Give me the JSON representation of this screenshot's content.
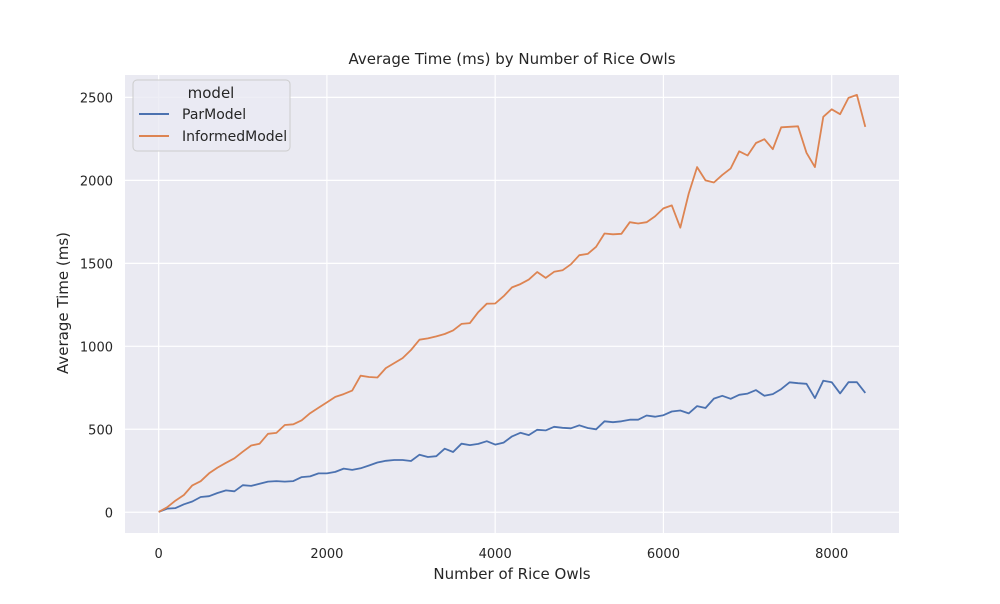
{
  "chart_data": {
    "type": "line",
    "title": "Average Time (ms) by Number of Rice Owls",
    "xlabel": "Number of Rice Owls",
    "ylabel": "Average Time (ms)",
    "xlim": [
      -400,
      8800
    ],
    "ylim": [
      -125,
      2635
    ],
    "xticks": [
      0,
      2000,
      4000,
      6000,
      8000
    ],
    "yticks": [
      0,
      500,
      1000,
      1500,
      2000,
      2500
    ],
    "grid": true,
    "legend": {
      "title": "model",
      "placement": "top-left"
    },
    "colors": {
      "plot_bg": "#eaeaf2",
      "grid": "#ffffff",
      "ParModel": "#4c72b0",
      "InformedModel": "#dd8452"
    },
    "x": [
      0,
      100,
      200,
      300,
      400,
      500,
      600,
      700,
      800,
      900,
      1000,
      1100,
      1200,
      1300,
      1400,
      1500,
      1600,
      1700,
      1800,
      1900,
      2000,
      2100,
      2200,
      2300,
      2400,
      2500,
      2600,
      2700,
      2800,
      2900,
      3000,
      3100,
      3200,
      3300,
      3400,
      3500,
      3600,
      3700,
      3800,
      3900,
      4000,
      4100,
      4200,
      4300,
      4400,
      4500,
      4600,
      4700,
      4800,
      4900,
      5000,
      5100,
      5200,
      5300,
      5400,
      5500,
      5600,
      5700,
      5800,
      5900,
      6000,
      6100,
      6200,
      6300,
      6400,
      6500,
      6600,
      6700,
      6800,
      6900,
      7000,
      7100,
      7200,
      7300,
      7400,
      7500,
      7600,
      7700,
      7800,
      7900,
      8000,
      8100,
      8200,
      8300,
      8400
    ],
    "series": [
      {
        "name": "ParModel",
        "values": [
          2,
          22,
          25,
          48,
          65,
          92,
          97,
          116,
          132,
          126,
          163,
          159,
          172,
          185,
          188,
          185,
          188,
          212,
          216,
          234,
          234,
          243,
          263,
          255,
          265,
          282,
          300,
          310,
          315,
          315,
          309,
          347,
          333,
          338,
          383,
          363,
          413,
          405,
          412,
          428,
          408,
          420,
          457,
          479,
          465,
          497,
          493,
          515,
          509,
          506,
          524,
          508,
          500,
          548,
          543,
          548,
          558,
          558,
          583,
          576,
          585,
          607,
          613,
          596,
          640,
          628,
          685,
          702,
          684,
          708,
          715,
          736,
          702,
          712,
          742,
          783,
          778,
          774,
          688,
          793,
          784,
          716,
          784,
          784,
          719
        ]
      },
      {
        "name": "InformedModel",
        "values": [
          2,
          30,
          70,
          104,
          162,
          187,
          235,
          269,
          298,
          325,
          365,
          402,
          413,
          473,
          478,
          526,
          530,
          554,
          597,
          630,
          662,
          695,
          712,
          733,
          823,
          815,
          812,
          869,
          899,
          929,
          978,
          1040,
          1048,
          1060,
          1074,
          1096,
          1135,
          1140,
          1206,
          1257,
          1258,
          1302,
          1355,
          1375,
          1402,
          1448,
          1412,
          1449,
          1458,
          1494,
          1549,
          1557,
          1600,
          1680,
          1675,
          1678,
          1748,
          1740,
          1748,
          1783,
          1831,
          1849,
          1715,
          1920,
          2080,
          2000,
          1987,
          2033,
          2072,
          2175,
          2150,
          2225,
          2248,
          2188,
          2320,
          2323,
          2326,
          2166,
          2080,
          2383,
          2428,
          2399,
          2497,
          2515,
          2322
        ]
      }
    ]
  }
}
